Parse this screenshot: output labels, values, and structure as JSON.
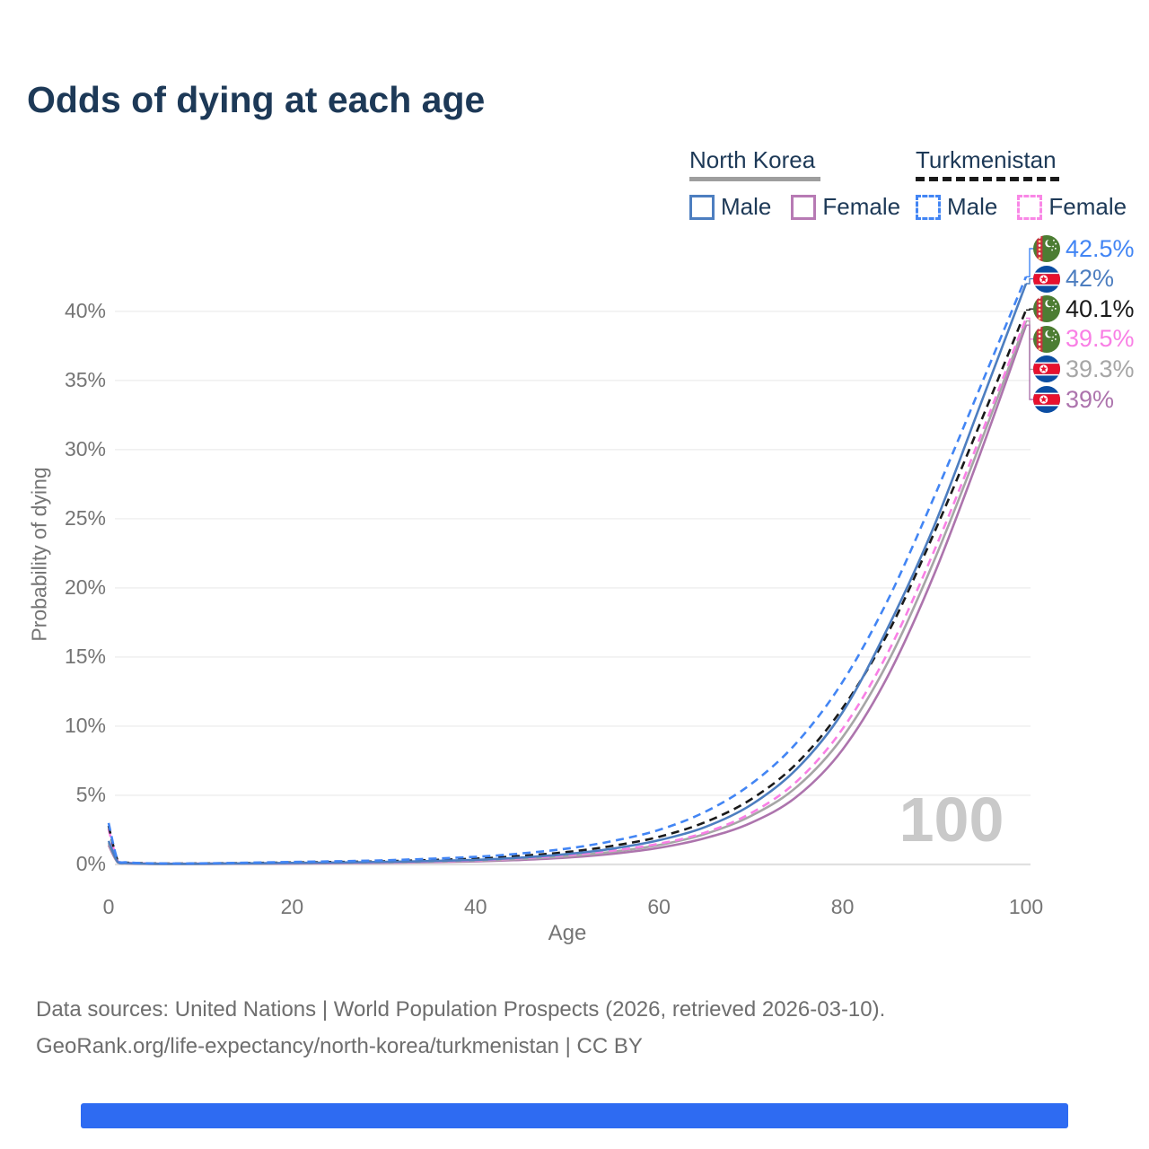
{
  "title": "Odds of dying at each age",
  "legend": {
    "groups": [
      {
        "title": "North Korea",
        "line_style": "solid",
        "line_color": "#9e9e9e",
        "items": [
          {
            "label": "Male",
            "color": "#4d7ec0"
          },
          {
            "label": "Female",
            "color": "#b77ab4"
          }
        ]
      },
      {
        "title": "Turkmenistan",
        "line_style": "dashed",
        "line_color": "#1a1a1a",
        "items": [
          {
            "label": "Male",
            "color": "#4285f4"
          },
          {
            "label": "Female",
            "color": "#f987e6"
          }
        ]
      }
    ]
  },
  "axis": {
    "y_label": "Probability of dying",
    "x_label": "Age"
  },
  "watermark": {
    "text": "100",
    "color": "#c9c9c9"
  },
  "chart_data": {
    "type": "line",
    "title": "Odds of dying at each age",
    "xlabel": "Age",
    "ylabel": "Probability of dying",
    "xlim": [
      0,
      100
    ],
    "ylim": [
      0,
      42.5
    ],
    "xticks": [
      0,
      20,
      40,
      60,
      80,
      100
    ],
    "yticks": [
      "0%",
      "5%",
      "10%",
      "15%",
      "20%",
      "25%",
      "30%",
      "35%",
      "40%"
    ],
    "grid": true,
    "legend_position": "top-right",
    "x": [
      0,
      1,
      2,
      5,
      10,
      20,
      30,
      40,
      45,
      50,
      55,
      60,
      65,
      70,
      75,
      80,
      85,
      90,
      95,
      100
    ],
    "series": [
      {
        "name": "Turkmenistan Male",
        "country": "turkmenistan",
        "sex": "Male",
        "color": "#4285f4",
        "dashed": true,
        "end_label": "42.5%",
        "values": [
          3.0,
          0.3,
          0.15,
          0.08,
          0.08,
          0.18,
          0.3,
          0.55,
          0.8,
          1.15,
          1.7,
          2.5,
          3.8,
          5.8,
          8.8,
          13.2,
          19.2,
          26.6,
          34.5,
          42.5
        ]
      },
      {
        "name": "North Korea Male",
        "country": "north-korea",
        "sex": "Male",
        "color": "#4d7ec0",
        "dashed": false,
        "end_label": "42%",
        "values": [
          1.7,
          0.18,
          0.1,
          0.05,
          0.05,
          0.11,
          0.18,
          0.33,
          0.5,
          0.75,
          1.15,
          1.75,
          2.7,
          4.3,
          6.9,
          11.0,
          17.2,
          24.5,
          33.2,
          42.0
        ]
      },
      {
        "name": "Turkmenistan Total",
        "country": "turkmenistan",
        "sex": "Total",
        "color": "#1a1a1a",
        "dashed": true,
        "end_label": "40.1%",
        "values": [
          2.8,
          0.27,
          0.13,
          0.07,
          0.07,
          0.14,
          0.23,
          0.42,
          0.62,
          0.9,
          1.35,
          2.0,
          3.05,
          4.7,
          7.3,
          11.3,
          16.8,
          24.0,
          31.9,
          40.1
        ]
      },
      {
        "name": "Turkmenistan Female",
        "country": "turkmenistan",
        "sex": "Female",
        "color": "#f97fe5",
        "dashed": true,
        "end_label": "39.5%",
        "values": [
          2.55,
          0.24,
          0.12,
          0.06,
          0.06,
          0.1,
          0.16,
          0.3,
          0.45,
          0.67,
          1.0,
          1.5,
          2.3,
          3.7,
          6.0,
          9.8,
          15.4,
          22.7,
          30.9,
          39.5
        ]
      },
      {
        "name": "North Korea Total",
        "country": "north-korea",
        "sex": "Total",
        "color": "#a6a6a6",
        "dashed": false,
        "end_label": "39.3%",
        "values": [
          1.55,
          0.16,
          0.09,
          0.04,
          0.04,
          0.09,
          0.15,
          0.27,
          0.4,
          0.6,
          0.92,
          1.4,
          2.2,
          3.5,
          5.6,
          9.2,
          14.7,
          22.0,
          30.4,
          39.3
        ]
      },
      {
        "name": "North Korea Female",
        "country": "north-korea",
        "sex": "Female",
        "color": "#ad74ad",
        "dashed": false,
        "end_label": "39%",
        "values": [
          1.4,
          0.14,
          0.08,
          0.04,
          0.04,
          0.07,
          0.12,
          0.22,
          0.33,
          0.5,
          0.77,
          1.2,
          1.9,
          3.0,
          4.9,
          8.3,
          13.7,
          21.0,
          29.7,
          39.0
        ]
      }
    ]
  },
  "footer": {
    "line1": "Data sources: United Nations | World Population Prospects (2026, retrieved 2026-03-10).",
    "line2": "GeoRank.org/life-expectancy/north-korea/turkmenistan | CC BY"
  },
  "bottom_bar": {
    "color": "#2e6bf2"
  },
  "colors": {
    "title_text": "#1d3957",
    "axis_text": "#757575",
    "grid": "#f0f0f0",
    "grid_zero": "#e0e0e0",
    "footer_text": "#6e6e6e"
  }
}
